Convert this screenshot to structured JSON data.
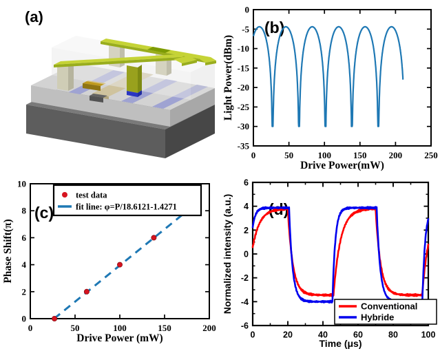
{
  "figure": {
    "background": "#ffffff"
  },
  "panel_a": {
    "label": "(a)",
    "description": "3D schematic of hybrid waveguide thermo-optic phase shifter",
    "colors": {
      "substrate_top": "#7a7a7a",
      "substrate_front": "#5d5d5d",
      "substrate_side": "#474747",
      "cladding_top": "#d3d3d3",
      "cladding_front": "#bfbfbf",
      "cladding_side": "#a8a8a8",
      "glass_top": "#f2f2f2",
      "glass_front": "#e9e9e9",
      "glass_side": "#dddddd",
      "waveguide": "#9fa3d2",
      "ridge_top": "#cfc39e",
      "ridge_front": "#b3a67c",
      "electrode": "#c5d336",
      "electrode_edge": "#99ad1d",
      "electrode_dark": "#7d9b04",
      "pillar": "#cfcdb6",
      "pillar_side": "#b6b49e",
      "via_olive": "#99a11d",
      "via_olive_side": "#7e8a12",
      "via_blue": "#2a35c2",
      "via_blue_side": "#202ca0",
      "block_mustard": "#c09a1c",
      "block_mustard_front": "#8f7412",
      "block_gray": "#636363",
      "block_gray_front": "#525252"
    }
  },
  "chart_data": [
    {
      "id": "b",
      "type": "line",
      "panel_label": "(b)",
      "xlabel": "Drive Power(mW)",
      "ylabel": "Light Power(dBm)",
      "xlim": [
        0,
        250
      ],
      "ylim": [
        -35,
        0
      ],
      "xticks": [
        0,
        50,
        100,
        150,
        200,
        250
      ],
      "yticks": [
        0,
        -5,
        -10,
        -15,
        -20,
        -25,
        -30,
        -35
      ],
      "grid": false,
      "font": "serif",
      "line_color": "#1e78b4",
      "line_width": 2.2,
      "model": {
        "kind": "interference_dB",
        "first_null": 27,
        "null_spacing": 37.2,
        "peak_dbm": -4.4,
        "floor_dbm": -30,
        "x_start": 0,
        "x_end": 210.5,
        "step": 0.25
      },
      "nulls_mw": [
        27,
        63,
        100,
        138,
        176
      ]
    },
    {
      "id": "c",
      "type": "scatter",
      "panel_label": "(c)",
      "xlabel": "Drive Power (mW)",
      "ylabel": "Phase Shift(π)",
      "xlim": [
        0,
        200
      ],
      "ylim": [
        0,
        10
      ],
      "xticks": [
        0,
        50,
        100,
        150,
        200
      ],
      "yticks": [
        0,
        2,
        4,
        6,
        8,
        10
      ],
      "grid": false,
      "font": "serif",
      "points": [
        [
          27,
          0
        ],
        [
          63,
          2
        ],
        [
          100,
          4
        ],
        [
          138,
          6
        ],
        [
          176,
          8
        ]
      ],
      "point_color": "#d61420",
      "point_edge": "#8c0e16",
      "fit": {
        "divisor": 18.6121,
        "intercept": 1.4271,
        "x_from": 26.6,
        "x_to": 177,
        "color": "#1e78b4",
        "dash": "11 8",
        "width": 3
      },
      "legend": {
        "position": "top",
        "entries": [
          {
            "marker": "dot",
            "color": "#d61420",
            "label": "test data"
          },
          {
            "marker": "dash",
            "color": "#1e78b4",
            "label": "fit line: φ=P/18.6121-1.4271"
          }
        ]
      }
    },
    {
      "id": "d",
      "type": "line",
      "panel_label": "(d)",
      "xlabel": "Time (μs)",
      "ylabel": "Normalized intensity (a.u.)",
      "xlim": [
        0,
        100
      ],
      "ylim": [
        -6,
        6
      ],
      "xticks": [
        0,
        20,
        40,
        60,
        80,
        100
      ],
      "yticks": [
        -6,
        -4,
        -2,
        0,
        2,
        4,
        6
      ],
      "xminor": 10,
      "yminor": 1,
      "grid": false,
      "font": "sans",
      "series": [
        {
          "name": "Conventional",
          "color": "#ff0000",
          "high": 3.8,
          "low": -3.45,
          "tau_rise": 4.0,
          "tau_fall": 2.8,
          "rise_times": [
            -3.2,
            46,
            96.5
          ],
          "fall_times": [
            20,
            70
          ],
          "noise": 0.09,
          "width": 2.6
        },
        {
          "name": "Hybride",
          "color": "#0000ee",
          "high": 3.87,
          "low": -4.0,
          "tau_rise": 1.6,
          "tau_fall": 2.0,
          "rise_times": [
            -2.5,
            45.4,
            96.6
          ],
          "fall_times": [
            20.7,
            70.6
          ],
          "noise": 0.08,
          "width": 2.6
        }
      ],
      "legend": {
        "position": "bottom-right",
        "entries": [
          {
            "marker": "line",
            "color": "#ff0000",
            "label": "Conventional"
          },
          {
            "marker": "line",
            "color": "#0000ee",
            "label": "Hybride"
          }
        ]
      }
    }
  ]
}
